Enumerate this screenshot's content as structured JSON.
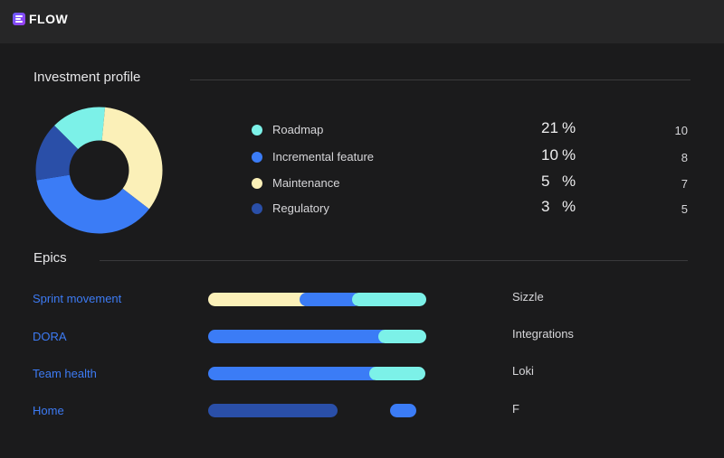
{
  "app": {
    "brand": "FLOW"
  },
  "colors": {
    "roadmap": "#7cf1e8",
    "incremental": "#3b7cf6",
    "maintenance": "#fbf0b8",
    "regulatory": "#2a4fa8"
  },
  "investment": {
    "title": "Investment profile",
    "items": [
      {
        "label": "Roadmap",
        "percent": "21",
        "percent_sign": "%",
        "count": "10",
        "color": "#7cf1e8"
      },
      {
        "label": "Incremental feature",
        "percent": "10",
        "percent_sign": "%",
        "count": "8",
        "color": "#3b7cf6"
      },
      {
        "label": "Maintenance",
        "percent": "5",
        "percent_sign": "%",
        "count": "7",
        "color": "#fbf0b8"
      },
      {
        "label": "Regulatory",
        "percent": "3",
        "percent_sign": "%",
        "count": "5",
        "color": "#2a4fa8"
      }
    ]
  },
  "chart_data": {
    "type": "pie",
    "donut": true,
    "categories": [
      "Roadmap",
      "Incremental feature",
      "Maintenance",
      "Regulatory"
    ],
    "values": [
      21,
      10,
      5,
      3
    ],
    "colors": [
      "#7cf1e8",
      "#3b7cf6",
      "#fbf0b8",
      "#2a4fa8"
    ],
    "shown_slices": [
      {
        "name": "Roadmap",
        "fraction": 0.14,
        "color": "#7cf1e8"
      },
      {
        "name": "Maintenance",
        "fraction": 0.34,
        "color": "#fbf0b8"
      },
      {
        "name": "Incremental feature",
        "fraction": 0.37,
        "color": "#3b7cf6"
      },
      {
        "name": "Regulatory",
        "fraction": 0.15,
        "color": "#2a4fa8"
      }
    ]
  },
  "epics": {
    "title": "Epics",
    "rows": [
      {
        "name": "Sprint movement",
        "team": "Sizzle",
        "segments": [
          {
            "color": "#fbf0b8",
            "start": 0.0,
            "end": 0.47
          },
          {
            "color": "#3b7cf6",
            "start": 0.42,
            "end": 0.7
          },
          {
            "color": "#7cf1e8",
            "start": 0.66,
            "end": 1.0
          }
        ]
      },
      {
        "name": "DORA",
        "team": "Integrations",
        "segments": [
          {
            "color": "#3b7cf6",
            "start": 0.0,
            "end": 0.83
          },
          {
            "color": "#7cf1e8",
            "start": 0.78,
            "end": 1.0
          }
        ]
      },
      {
        "name": "Team health",
        "team": "Loki",
        "segments": [
          {
            "color": "#3b7cf6",
            "start": 0.0,
            "end": 0.79
          },
          {
            "color": "#7cf1e8",
            "start": 0.74,
            "end": 0.995
          }
        ]
      },
      {
        "name": "Home",
        "team": "F",
        "segments": [
          {
            "color": "#2a4fa8",
            "start": 0.0,
            "end": 0.595
          },
          {
            "color": "#3b7cf6",
            "start": 0.835,
            "end": 0.955
          }
        ]
      }
    ]
  }
}
